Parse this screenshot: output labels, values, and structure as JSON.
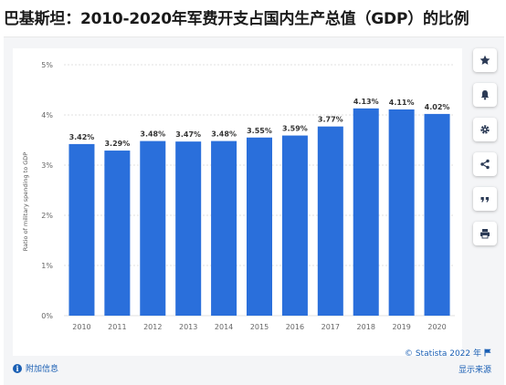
{
  "page": {
    "title": "巴基斯坦：2010-2020年军费开支占国内生产总值（GDP）的比例"
  },
  "chart_data": {
    "type": "bar",
    "title": "",
    "xlabel": "",
    "ylabel": "Ratio of military spending to GDP",
    "categories": [
      "2010",
      "2011",
      "2012",
      "2013",
      "2014",
      "2015",
      "2016",
      "2017",
      "2018",
      "2019",
      "2020"
    ],
    "values": [
      3.42,
      3.29,
      3.48,
      3.47,
      3.48,
      3.55,
      3.59,
      3.77,
      4.13,
      4.11,
      4.02
    ],
    "value_labels": [
      "3.42%",
      "3.29%",
      "3.48%",
      "3.47%",
      "3.48%",
      "3.55%",
      "3.59%",
      "3.77%",
      "4.13%",
      "4.11%",
      "4.02%"
    ],
    "ylim": [
      0,
      5
    ],
    "yticks": [
      0,
      1,
      2,
      3,
      4,
      5
    ],
    "ytick_labels": [
      "0%",
      "1%",
      "2%",
      "3%",
      "4%",
      "5%"
    ],
    "grid": true,
    "bar_color": "#2a6fdb"
  },
  "toolbar": {
    "items": [
      {
        "icon": "star-icon"
      },
      {
        "icon": "bell-icon"
      },
      {
        "icon": "gear-icon"
      },
      {
        "icon": "share-icon"
      },
      {
        "icon": "quote-icon"
      },
      {
        "icon": "print-icon"
      }
    ]
  },
  "footer": {
    "credit": "© Statista 2022 年",
    "info_label": "附加信息",
    "source_label": "显示来源"
  },
  "colors": {
    "accent": "#1a5fb4",
    "bar": "#2a6fdb",
    "grid": "#d9d9d9",
    "panel_bg": "#f4f5f7"
  }
}
